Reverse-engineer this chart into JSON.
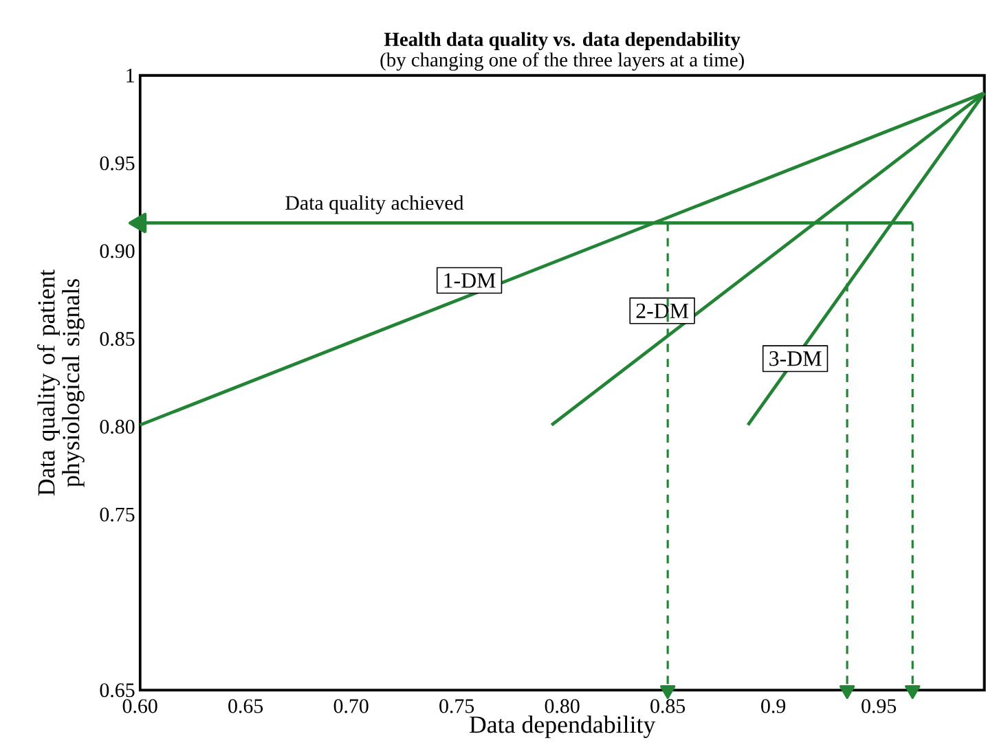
{
  "chart_data": {
    "type": "line",
    "title": "Health data quality vs. data dependability",
    "subtitle": "(by changing one of the three layers at a time)",
    "xlabel": "Data dependability",
    "ylabel": "Data quality of patient physiological signals",
    "xlim": [
      0.6,
      1.0
    ],
    "ylim": [
      0.65,
      1.0
    ],
    "xticks": [
      {
        "value": 0.6,
        "label": "0.60"
      },
      0.65,
      {
        "value": 0.7,
        "label": "0.70"
      },
      0.75,
      {
        "value": 0.8,
        "label": "0.80"
      },
      0.85,
      0.9,
      0.95
    ],
    "yticks": [
      0.65,
      0.75,
      {
        "value": 0.8,
        "label": "0.80"
      },
      0.85,
      {
        "value": 0.9,
        "label": "0.90"
      },
      0.95,
      1
    ],
    "marker": "none",
    "series": [
      {
        "name": "1-DM",
        "color": "#238436",
        "x": [
          0.6,
          1.0
        ],
        "values": [
          0.801,
          0.99
        ]
      },
      {
        "name": "2-DM",
        "color": "#238436",
        "x": [
          0.795,
          1.0
        ],
        "values": [
          0.801,
          0.99
        ]
      },
      {
        "name": "3-DM",
        "color": "#238436",
        "x": [
          0.888,
          1.0
        ],
        "values": [
          0.801,
          0.99
        ]
      },
      {
        "color": "#238436",
        "marker": "triangle",
        "x": [
          0.966,
          0.6
        ],
        "values": [
          0.916,
          0.916
        ]
      },
      {
        "color": "#238436",
        "marker": "triangle",
        "line_style": "dashed",
        "x": [
          0.85,
          0.85
        ],
        "values": [
          0.916,
          0.65
        ]
      },
      {
        "color": "#238436",
        "marker": "triangle",
        "line_style": "dashed",
        "x": [
          0.935,
          0.935
        ],
        "values": [
          0.916,
          0.65
        ]
      },
      {
        "color": "#238436",
        "marker": "triangle",
        "line_style": "dashed",
        "x": [
          0.966,
          0.966
        ],
        "values": [
          0.916,
          0.65
        ]
      }
    ],
    "annotations": [
      {
        "text": "Data quality achieved",
        "x": 0.711,
        "y": 0.916
      }
    ]
  }
}
